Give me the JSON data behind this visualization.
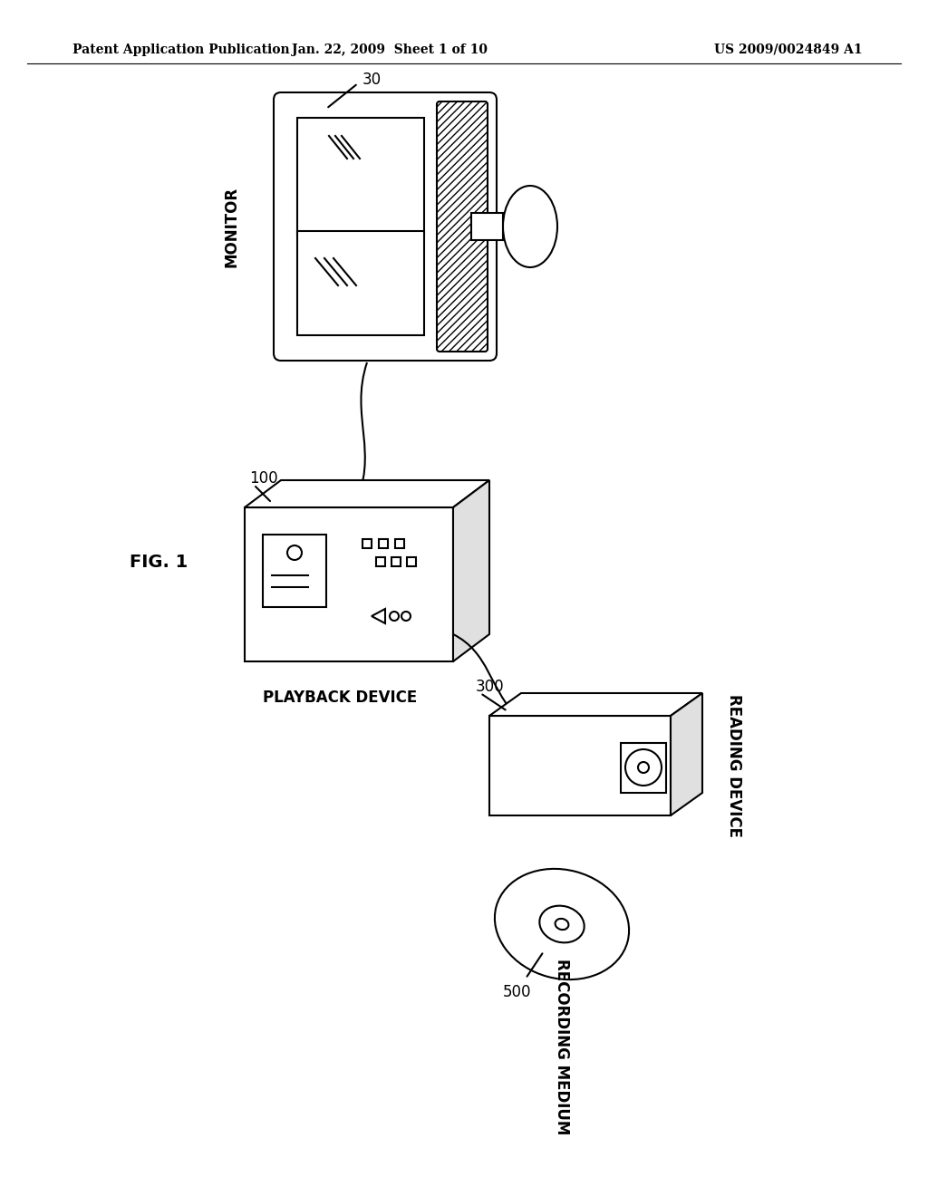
{
  "title_left": "Patent Application Publication",
  "title_mid": "Jan. 22, 2009  Sheet 1 of 10",
  "title_right": "US 2009/0024849 A1",
  "fig_label": "FIG. 1",
  "monitor_label": "MONITOR",
  "monitor_number": "30",
  "playback_label": "PLAYBACK DEVICE",
  "playback_number": "100",
  "reading_label": "READING DEVICE",
  "reading_number": "300",
  "recording_label": "RECORDING MEDIUM",
  "recording_number": "500",
  "bg_color": "#ffffff",
  "line_color": "#000000",
  "hatch_color": "#000000"
}
